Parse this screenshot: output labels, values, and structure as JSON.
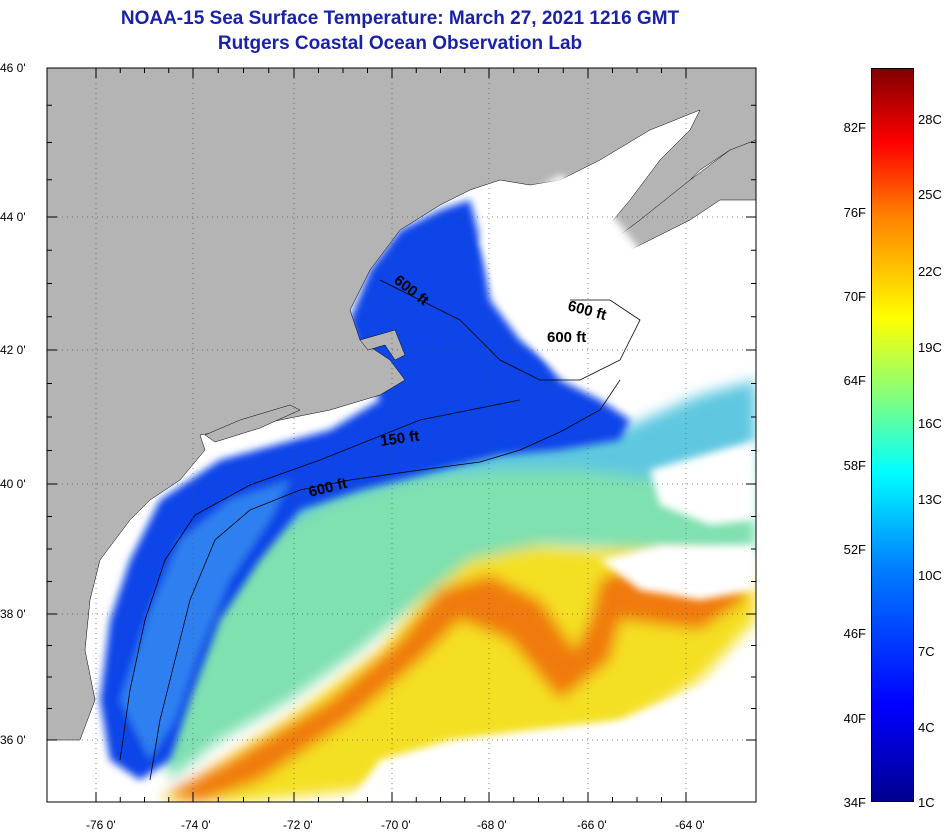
{
  "title_line1": "NOAA-15 Sea Surface Temperature:  March 27, 2021 1216 GMT",
  "title_line2": "Rutgers Coastal Ocean Observation Lab",
  "lat_labels": [
    "46 0'",
    "44 0'",
    "42 0'",
    "40 0'",
    "38 0'",
    "36 0'"
  ],
  "lon_labels": [
    "-76 0'",
    "-74 0'",
    "-72 0'",
    "-70 0'",
    "-68 0'",
    "-66 0'",
    "-64 0'"
  ],
  "contour_labels": [
    "600 ft",
    "600 ft",
    "600 ft",
    "150 ft",
    "600 ft"
  ],
  "colorbar": {
    "fahrenheit": [
      "82F",
      "76F",
      "70F",
      "64F",
      "58F",
      "52F",
      "46F",
      "40F",
      "34F"
    ],
    "celsius": [
      "28C",
      "25C",
      "22C",
      "19C",
      "16C",
      "13C",
      "10C",
      "7C",
      "4C",
      "1C"
    ]
  },
  "colors": {
    "title": "#1a23a8",
    "land": "#b4b4b4",
    "cloud": "#ffffff",
    "cold": "#0a3cf0",
    "cool": "#2f8cf0",
    "mid": "#7fe0a0",
    "warm": "#f0e020",
    "hot": "#f07a10"
  }
}
